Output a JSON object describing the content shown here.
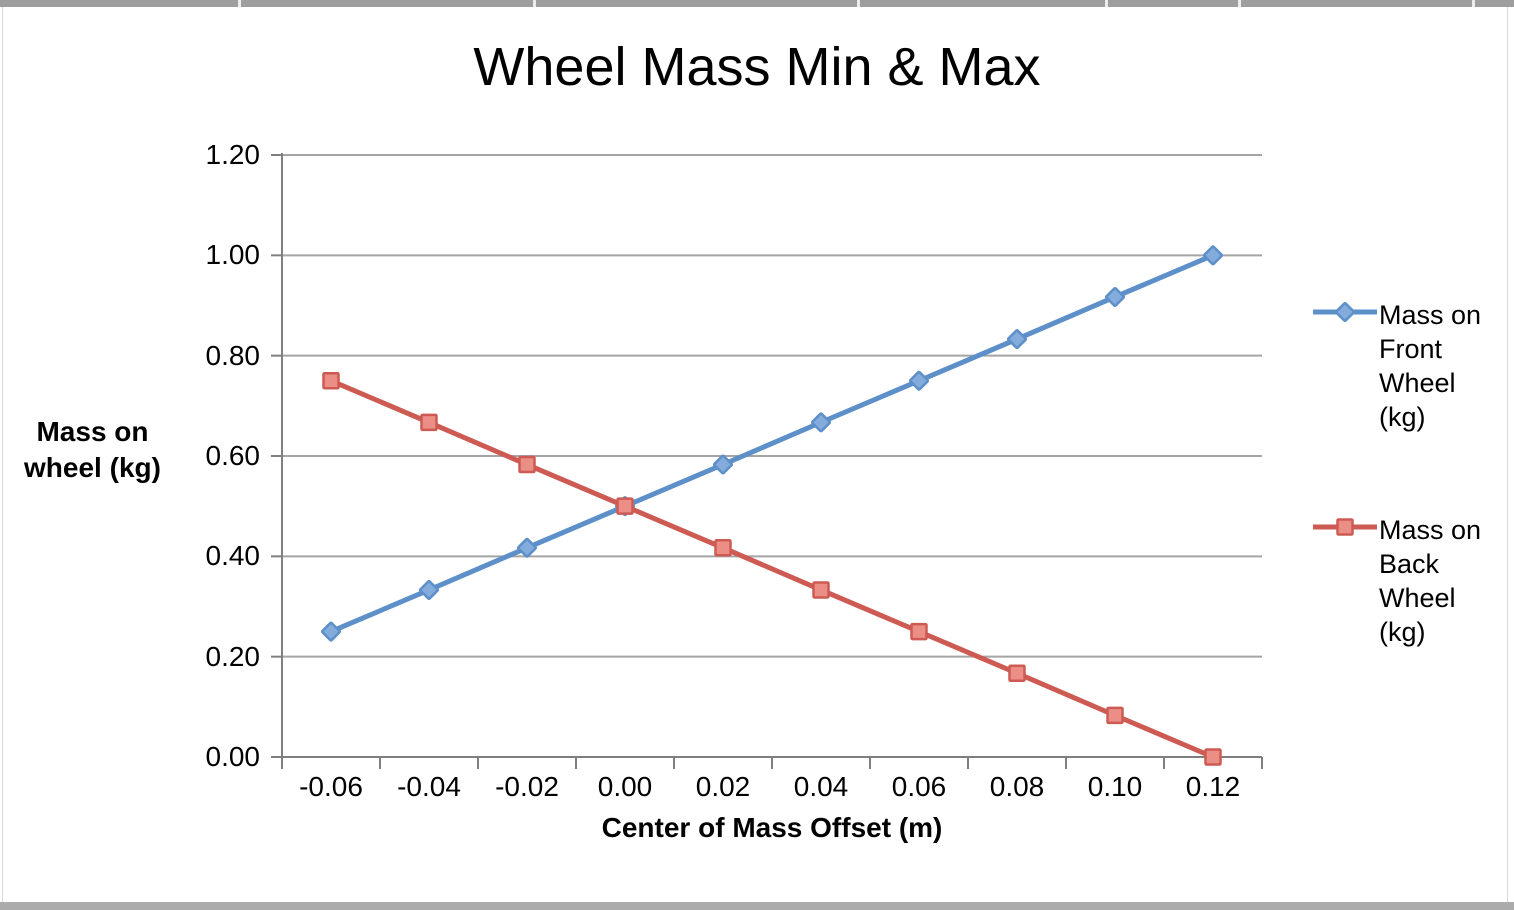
{
  "chart_data": {
    "type": "line",
    "title": "Wheel Mass Min & Max",
    "xlabel": "Center of Mass Offset (m)",
    "ylabel": "Mass on wheel (kg)",
    "ylabel_lines": [
      "Mass on",
      "wheel (kg)"
    ],
    "x": [
      -0.06,
      -0.04,
      -0.02,
      0.0,
      0.02,
      0.04,
      0.06,
      0.08,
      0.1,
      0.12
    ],
    "x_tick_labels": [
      "-0.06",
      "-0.04",
      "-0.02",
      "0.00",
      "0.02",
      "0.04",
      "0.06",
      "0.08",
      "0.10",
      "0.12"
    ],
    "y_tick_values": [
      0,
      0.2,
      0.4,
      0.6,
      0.8,
      1.0,
      1.2
    ],
    "y_tick_labels": [
      "0.00",
      "0.20",
      "0.40",
      "0.60",
      "0.80",
      "1.00",
      "1.20"
    ],
    "ylim": [
      0,
      1.2
    ],
    "grid": true,
    "legend_position": "right",
    "series": [
      {
        "name": "Mass on Front Wheel (kg)",
        "legend_lines": [
          "Mass on",
          "Front",
          "Wheel",
          "(kg)"
        ],
        "marker": "diamond",
        "line_color": "#5D8FC9",
        "marker_fill": "#83ABDC",
        "values": [
          0.25,
          0.333,
          0.417,
          0.5,
          0.583,
          0.667,
          0.75,
          0.833,
          0.917,
          1.0
        ]
      },
      {
        "name": "Mass on Back Wheel (kg)",
        "legend_lines": [
          "Mass on",
          "Back",
          "Wheel",
          "(kg)"
        ],
        "marker": "square",
        "line_color": "#CD5B53",
        "marker_fill": "#EA8E86",
        "values": [
          0.75,
          0.667,
          0.583,
          0.5,
          0.417,
          0.333,
          0.25,
          0.167,
          0.083,
          0.0
        ]
      }
    ]
  },
  "colors": {
    "background": "#FFFFFF",
    "gridline": "#A5A5A5",
    "axis": "#7F7F7F",
    "text": "#000000",
    "sheet_border_top": "#9E9E9E",
    "sheet_border_bottom": "#ABABAB",
    "chart_frame": "#D8D8D8"
  }
}
